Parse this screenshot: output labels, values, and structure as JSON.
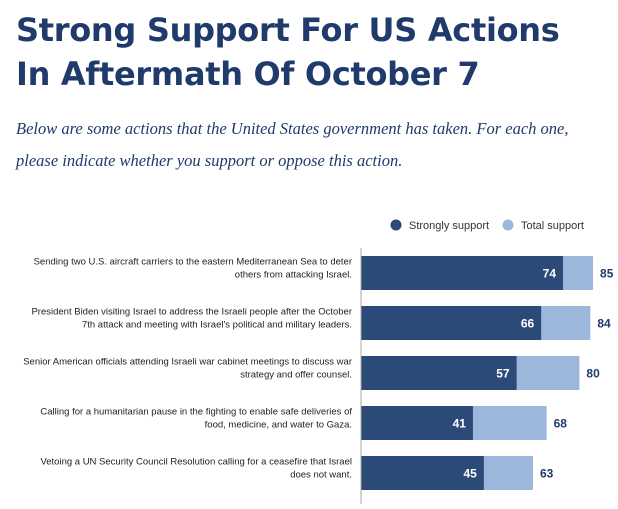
{
  "header": {
    "title_line1": "Strong Support For US Actions",
    "title_line2": "In Aftermath Of October 7",
    "subtitle_line1": "Below are some actions that the United States government has taken. For each one,",
    "subtitle_line2": "please indicate whether you support or oppose this action."
  },
  "colors": {
    "title": "#1f3a6b",
    "strong": "#2b4a78",
    "total": "#9db6dc",
    "label_text": "#222222",
    "axis": "#aaaaaa"
  },
  "chart_data": {
    "type": "bar",
    "orientation": "horizontal",
    "stacked": "overlay",
    "title": "",
    "xlabel": "",
    "ylabel": "",
    "xlim": [
      0,
      100
    ],
    "grid": false,
    "legend": "top-right",
    "categories": [
      [
        "Sending two U.S. aircraft carriers to the eastern Mediterranean Sea to deter",
        "others from attacking Israel."
      ],
      [
        "President Biden visiting Israel to address the Israeli people after the October",
        "7th attack and meeting with Israel's political and military leaders."
      ],
      [
        "Senior American officials attending Israeli war cabinet meetings to discuss war",
        "strategy and offer counsel."
      ],
      [
        "Calling for a humanitarian pause in the fighting to enable safe deliveries of",
        "food, medicine, and water to Gaza."
      ],
      [
        "Vetoing a UN Security Council Resolution calling for a ceasefire that Israel",
        "does not want."
      ]
    ],
    "series": [
      {
        "name": "Strongly support",
        "values": [
          74,
          66,
          57,
          41,
          45
        ]
      },
      {
        "name": "Total support",
        "values": [
          85,
          84,
          80,
          68,
          63
        ]
      }
    ]
  }
}
